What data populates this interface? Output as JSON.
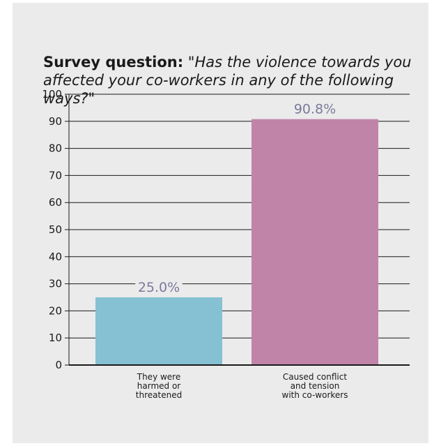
{
  "title": {
    "lead": "Survey question:",
    "question": "\"Has the violence towards you affected your co-workers in any of the following ways?\""
  },
  "colors": {
    "panel": "#ebebeb",
    "bar1": "#85c1d3",
    "bar2": "#c084a9",
    "axis": "#1a1a1a",
    "data_label": "#7a7a9c"
  },
  "chart_data": {
    "type": "bar",
    "categories": [
      [
        "They were",
        "harmed or",
        "threatened"
      ],
      [
        "Caused conflict",
        "and tension",
        "with co-workers"
      ]
    ],
    "values": [
      25.0,
      90.8
    ],
    "data_labels": [
      "25.0%",
      "90.8%"
    ],
    "ylim": [
      0,
      100
    ],
    "yticks": [
      0,
      10,
      20,
      30,
      40,
      50,
      60,
      70,
      80,
      90,
      100
    ],
    "grid": true,
    "title": "Survey question: \"Has the violence towards you affected your co-workers in any of the following ways?\"",
    "xlabel": "",
    "ylabel": ""
  }
}
